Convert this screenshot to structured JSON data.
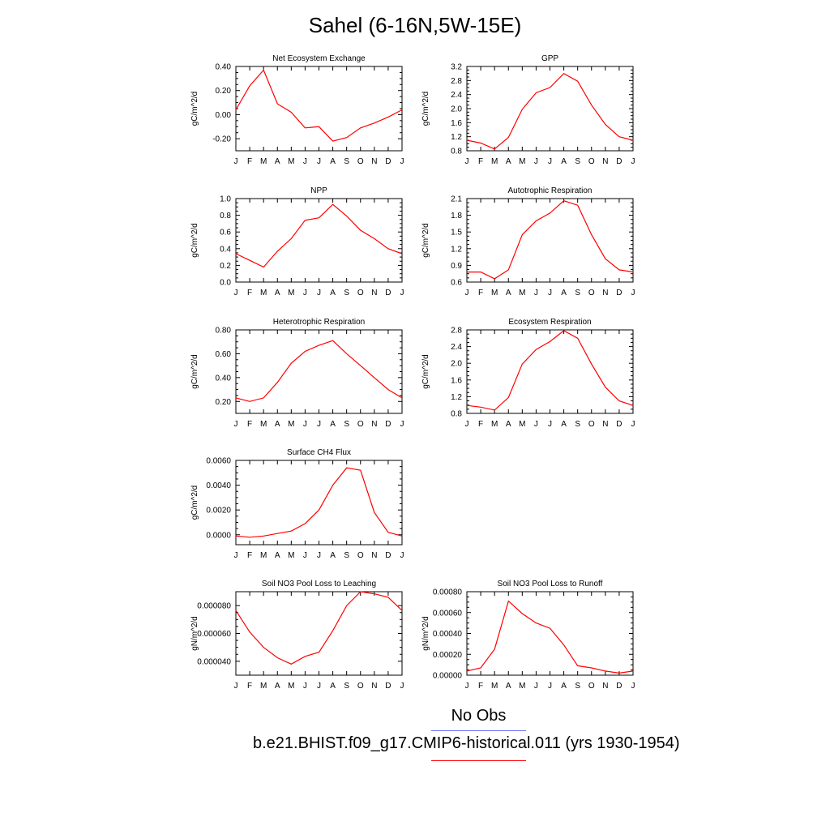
{
  "title": "Sahel (6-16N,5W-15E)",
  "months": [
    "J",
    "F",
    "M",
    "A",
    "M",
    "J",
    "J",
    "A",
    "S",
    "O",
    "N",
    "D",
    "J"
  ],
  "colors": {
    "model": "#ff0000",
    "obs": "#6f6fff",
    "axis": "#000000"
  },
  "legend": {
    "obs_label": "No Obs",
    "model_label": "b.e21.BHIST.f09_g17.CMIP6-historical.011 (yrs 1930-1954)"
  },
  "chart_data": [
    {
      "type": "line",
      "title": "Net Ecosystem Exchange",
      "ylabel": "gC/m^2/d",
      "ylim": [
        -0.3,
        0.4
      ],
      "yticks": [
        -0.2,
        0.0,
        0.2,
        0.4
      ],
      "ytick_labels": [
        "-0.20",
        "0.00",
        "0.20",
        "0.40"
      ],
      "values": [
        0.04,
        0.24,
        0.37,
        0.09,
        0.02,
        -0.11,
        -0.1,
        -0.22,
        -0.19,
        -0.11,
        -0.07,
        -0.02,
        0.04
      ]
    },
    {
      "type": "line",
      "title": "GPP",
      "ylabel": "gC/m^2/d",
      "ylim": [
        0.8,
        3.2
      ],
      "yticks": [
        0.8,
        1.2,
        1.6,
        2.0,
        2.4,
        2.8,
        3.2
      ],
      "ytick_labels": [
        "0.8",
        "1.2",
        "1.6",
        "2.0",
        "2.4",
        "2.8",
        "3.2"
      ],
      "values": [
        1.1,
        1.02,
        0.85,
        1.18,
        1.98,
        2.45,
        2.6,
        3.0,
        2.78,
        2.1,
        1.55,
        1.2,
        1.1
      ]
    },
    {
      "type": "line",
      "title": "NPP",
      "ylabel": "gC/m^2/d",
      "ylim": [
        0.0,
        1.0
      ],
      "yticks": [
        0.0,
        0.2,
        0.4,
        0.6,
        0.8,
        1.0
      ],
      "ytick_labels": [
        "0.0",
        "0.2",
        "0.4",
        "0.6",
        "0.8",
        "1.0"
      ],
      "values": [
        0.34,
        0.26,
        0.18,
        0.37,
        0.52,
        0.74,
        0.77,
        0.93,
        0.79,
        0.62,
        0.52,
        0.4,
        0.34
      ]
    },
    {
      "type": "line",
      "title": "Autotrophic Respiration",
      "ylabel": "gC/m^2/d",
      "ylim": [
        0.6,
        2.1
      ],
      "yticks": [
        0.6,
        0.9,
        1.2,
        1.5,
        1.8,
        2.1
      ],
      "ytick_labels": [
        "0.6",
        "0.9",
        "1.2",
        "1.5",
        "1.8",
        "2.1"
      ],
      "values": [
        0.78,
        0.78,
        0.66,
        0.82,
        1.45,
        1.7,
        1.84,
        2.06,
        1.98,
        1.45,
        1.02,
        0.82,
        0.78
      ]
    },
    {
      "type": "line",
      "title": "Heterotrophic Respiration",
      "ylabel": "gC/m^2/d",
      "ylim": [
        0.1,
        0.8
      ],
      "yticks": [
        0.2,
        0.4,
        0.6,
        0.8
      ],
      "ytick_labels": [
        "0.20",
        "0.40",
        "0.60",
        "0.80"
      ],
      "values": [
        0.23,
        0.2,
        0.23,
        0.36,
        0.52,
        0.62,
        0.67,
        0.71,
        0.6,
        0.5,
        0.4,
        0.3,
        0.23
      ]
    },
    {
      "type": "line",
      "title": "Ecosystem Respiration",
      "ylabel": "gC/m^2/d",
      "ylim": [
        0.8,
        2.8
      ],
      "yticks": [
        0.8,
        1.2,
        1.6,
        2.0,
        2.4,
        2.8
      ],
      "ytick_labels": [
        "0.8",
        "1.2",
        "1.6",
        "2.0",
        "2.4",
        "2.8"
      ],
      "values": [
        0.99,
        0.95,
        0.88,
        1.18,
        1.98,
        2.33,
        2.52,
        2.78,
        2.6,
        1.98,
        1.43,
        1.1,
        0.99
      ]
    },
    {
      "type": "line",
      "title": "Surface CH4 Flux",
      "ylabel": "gC/m^2/d",
      "ylim": [
        -0.0008,
        0.006
      ],
      "yticks": [
        0.0,
        0.002,
        0.004,
        0.006
      ],
      "ytick_labels": [
        "0.0000",
        "0.0020",
        "0.0040",
        "0.0060"
      ],
      "values": [
        -0.0001,
        -0.0002,
        -0.0001,
        0.0001,
        0.0003,
        0.0009,
        0.002,
        0.004,
        0.0054,
        0.0052,
        0.0018,
        0.0002,
        -0.0001
      ]
    },
    null,
    {
      "type": "line",
      "title": "Soil NO3 Pool Loss to Leaching",
      "ylabel": "gN/m^2/d",
      "ylim": [
        3e-05,
        9e-05
      ],
      "yticks": [
        4e-05,
        6e-05,
        8e-05
      ],
      "ytick_labels": [
        "0.000040",
        "0.000060",
        "0.000080"
      ],
      "values": [
        7.65e-05,
        6.1e-05,
        5e-05,
        4.25e-05,
        3.8e-05,
        4.35e-05,
        4.65e-05,
        6.2e-05,
        8e-05,
        9e-05,
        8.85e-05,
        8.6e-05,
        7.65e-05
      ]
    },
    {
      "type": "line",
      "title": "Soil NO3 Pool Loss to Runoff",
      "ylabel": "gN/m^2/d",
      "ylim": [
        0.0,
        0.0008
      ],
      "yticks": [
        0.0,
        0.0002,
        0.0004,
        0.0006,
        0.0008
      ],
      "ytick_labels": [
        "0.00000",
        "0.00020",
        "0.00040",
        "0.00060",
        "0.00080"
      ],
      "values": [
        4e-05,
        7e-05,
        0.00025,
        0.00071,
        0.00059,
        0.0005,
        0.00045,
        0.00029,
        9e-05,
        7e-05,
        4e-05,
        2e-05,
        4e-05
      ]
    }
  ]
}
